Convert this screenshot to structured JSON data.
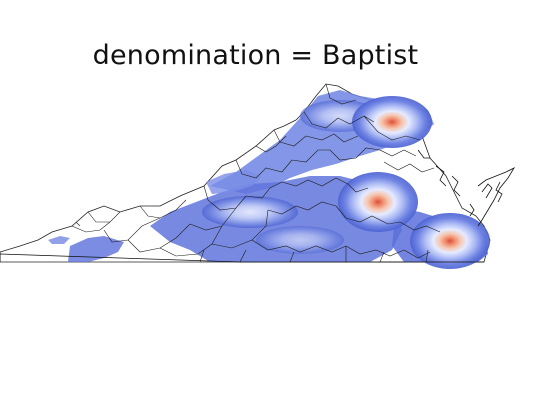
{
  "title": "denomination = Baptist",
  "chart_data": {
    "type": "heatmap",
    "title": "denomination = Baptist",
    "xlabel": "",
    "ylabel": "",
    "grid": false,
    "legend": false,
    "colormap": "coolwarm",
    "colors": {
      "low": "#4a5fd0",
      "mid": "#e7ebff",
      "high": "#e0623e",
      "border": "#111111"
    }
  }
}
